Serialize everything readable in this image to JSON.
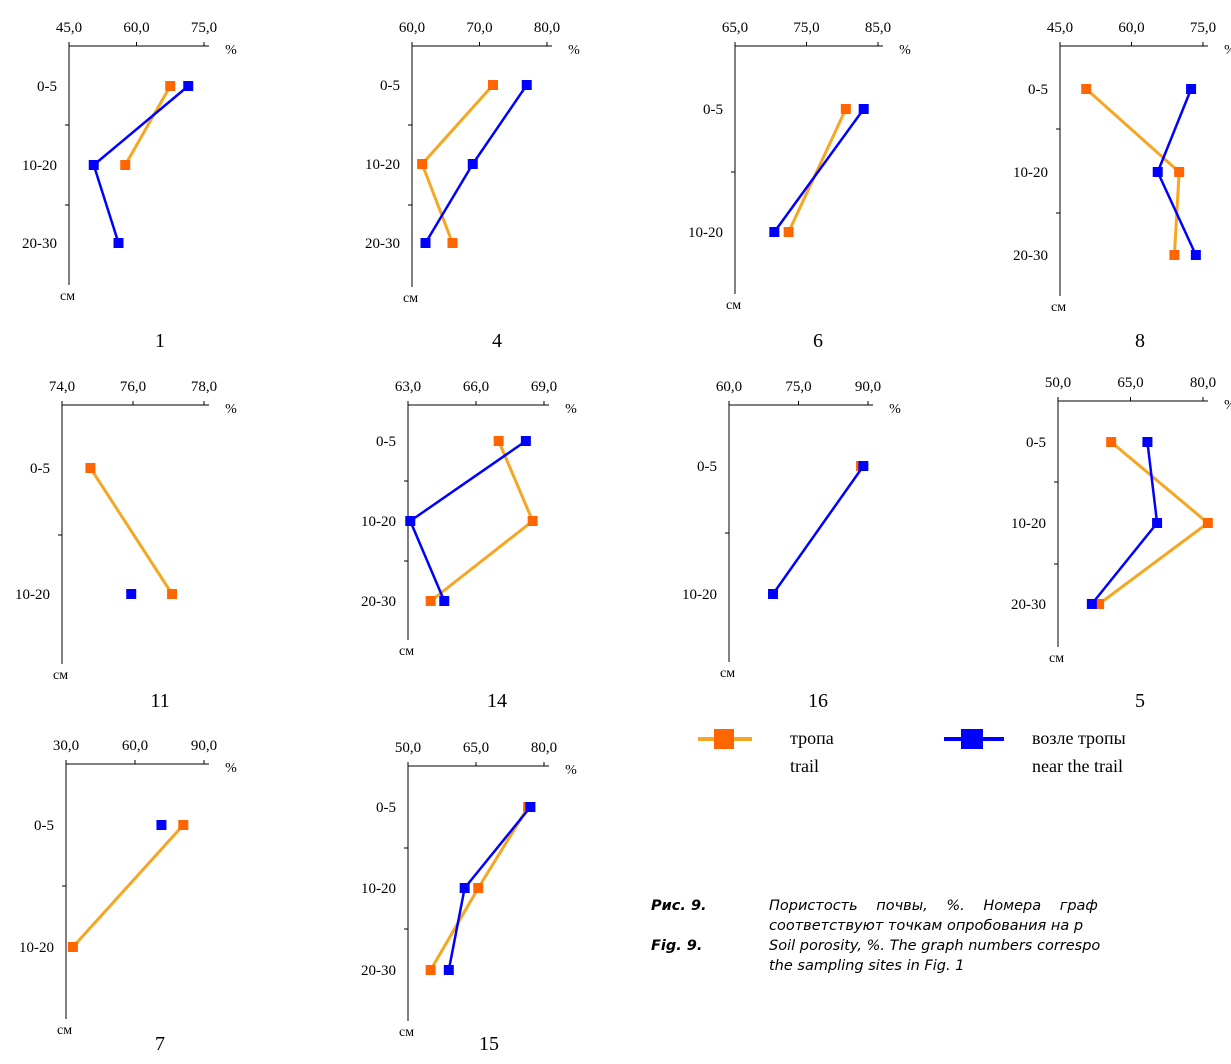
{
  "chart_data": [
    {
      "type": "line",
      "id": "1",
      "label": "1",
      "xticks": [
        "45,0",
        "60,0",
        "75,0"
      ],
      "xlim": [
        45,
        75
      ],
      "unit": "%",
      "ylabel": "см",
      "categories": [
        "0-5",
        "10-20",
        "20-30"
      ],
      "series": [
        {
          "name": "тропа",
          "values": [
            67.5,
            57.5,
            null
          ]
        },
        {
          "name": "возле тропы",
          "values": [
            71.5,
            50.5,
            56.0
          ]
        }
      ]
    },
    {
      "type": "line",
      "id": "4",
      "label": "4",
      "xticks": [
        "60,0",
        "70,0",
        "80,0"
      ],
      "xlim": [
        60,
        80
      ],
      "unit": "%",
      "ylabel": "см",
      "categories": [
        "0-5",
        "10-20",
        "20-30"
      ],
      "series": [
        {
          "name": "тропа",
          "values": [
            72.0,
            61.5,
            66.0
          ]
        },
        {
          "name": "возле тропы",
          "values": [
            77.0,
            69.0,
            62.0
          ]
        }
      ]
    },
    {
      "type": "line",
      "id": "6",
      "label": "6",
      "xticks": [
        "65,0",
        "75,0",
        "85,0"
      ],
      "xlim": [
        65,
        85
      ],
      "unit": "%",
      "ylabel": "см",
      "categories": [
        "0-5",
        "10-20"
      ],
      "series": [
        {
          "name": "тропа",
          "values": [
            80.5,
            72.5
          ]
        },
        {
          "name": "возле тропы",
          "values": [
            83.0,
            70.5
          ]
        }
      ]
    },
    {
      "type": "line",
      "id": "8",
      "label": "8",
      "xticks": [
        "45,0",
        "60,0",
        "75,0"
      ],
      "xlim": [
        45,
        75
      ],
      "unit": "%",
      "ylabel": "см",
      "categories": [
        "0-5",
        "10-20",
        "20-30"
      ],
      "series": [
        {
          "name": "тропа",
          "values": [
            50.5,
            70.0,
            69.0
          ]
        },
        {
          "name": "возле тропы",
          "values": [
            72.5,
            65.5,
            73.5
          ]
        }
      ]
    },
    {
      "type": "line",
      "id": "11",
      "label": "11",
      "xticks": [
        "74,0",
        "76,0",
        "78,0"
      ],
      "xlim": [
        74,
        78
      ],
      "unit": "%",
      "ylabel": "см",
      "categories": [
        "0-5",
        "10-20"
      ],
      "series": [
        {
          "name": "тропа",
          "values": [
            74.8,
            77.1
          ]
        },
        {
          "name": "возле тропы",
          "values": [
            null,
            75.95
          ]
        }
      ]
    },
    {
      "type": "line",
      "id": "14",
      "label": "14",
      "xticks": [
        "63,0",
        "66,0",
        "69,0"
      ],
      "xlim": [
        63,
        69
      ],
      "unit": "%",
      "ylabel": "см",
      "categories": [
        "0-5",
        "10-20",
        "20-30"
      ],
      "series": [
        {
          "name": "тропа",
          "values": [
            67.0,
            68.5,
            64.0
          ]
        },
        {
          "name": "возле тропы",
          "values": [
            68.2,
            63.1,
            64.6
          ]
        }
      ]
    },
    {
      "type": "line",
      "id": "16",
      "label": "16",
      "xticks": [
        "60,0",
        "75,0",
        "90,0"
      ],
      "xlim": [
        60,
        90
      ],
      "unit": "%",
      "ylabel": "см",
      "categories": [
        "0-5",
        "10-20"
      ],
      "series": [
        {
          "name": "тропа",
          "values": [
            88.5,
            null
          ]
        },
        {
          "name": "возле тропы",
          "values": [
            89.0,
            69.5
          ]
        }
      ]
    },
    {
      "type": "line",
      "id": "5",
      "label": "5",
      "xticks": [
        "50,0",
        "65,0",
        "80,0"
      ],
      "xlim": [
        50,
        80
      ],
      "unit": "%",
      "ylabel": "см",
      "categories": [
        "0-5",
        "10-20",
        "20-30"
      ],
      "series": [
        {
          "name": "тропа",
          "values": [
            61.0,
            81.0,
            58.5
          ]
        },
        {
          "name": "возле тропы",
          "values": [
            68.5,
            70.5,
            57.0
          ]
        }
      ]
    },
    {
      "type": "line",
      "id": "7",
      "label": "7",
      "xticks": [
        "30,0",
        "60,0",
        "90,0"
      ],
      "xlim": [
        30,
        90
      ],
      "unit": "%",
      "ylabel": "см",
      "categories": [
        "0-5",
        "10-20"
      ],
      "series": [
        {
          "name": "тропа",
          "values": [
            81.0,
            33.0
          ]
        },
        {
          "name": "возле тропы",
          "values": [
            71.5,
            null
          ]
        }
      ]
    },
    {
      "type": "line",
      "id": "15",
      "label": "15",
      "xticks": [
        "50,0",
        "65,0",
        "80,0"
      ],
      "xlim": [
        50,
        80
      ],
      "unit": "%",
      "ylabel": "см",
      "categories": [
        "0-5",
        "10-20",
        "20-30"
      ],
      "series": [
        {
          "name": "тропа",
          "values": [
            76.5,
            65.5,
            55.0
          ]
        },
        {
          "name": "возле тропы",
          "values": [
            77.0,
            62.5,
            59.0
          ]
        }
      ]
    }
  ],
  "legend": {
    "items": [
      {
        "name": "тропа",
        "line1": "тропа",
        "line2": "trail",
        "color": "#F5A623",
        "marker_color": "#FF6600"
      },
      {
        "name": "возле тропы",
        "line1": "возле тропы",
        "line2": "near the trail",
        "color": "#0000FF",
        "marker_color": "#0000FF"
      }
    ]
  },
  "caption": {
    "ru_tag": "Рис. 9.",
    "ru_text": "Пористость почвы, %. Номера граф",
    "ru_text2": "соответствуют точкам опробования на р",
    "en_tag": "Fig. 9.",
    "en_text": "Soil porosity, %. The graph numbers correspo",
    "en_text2": "the sampling sites in Fig. 1"
  },
  "colors": {
    "trail_line": "#F5A623",
    "trail_marker": "#FF6600",
    "near_line": "#0000FF",
    "near_marker": "#0000FF",
    "axis": "#000000"
  }
}
